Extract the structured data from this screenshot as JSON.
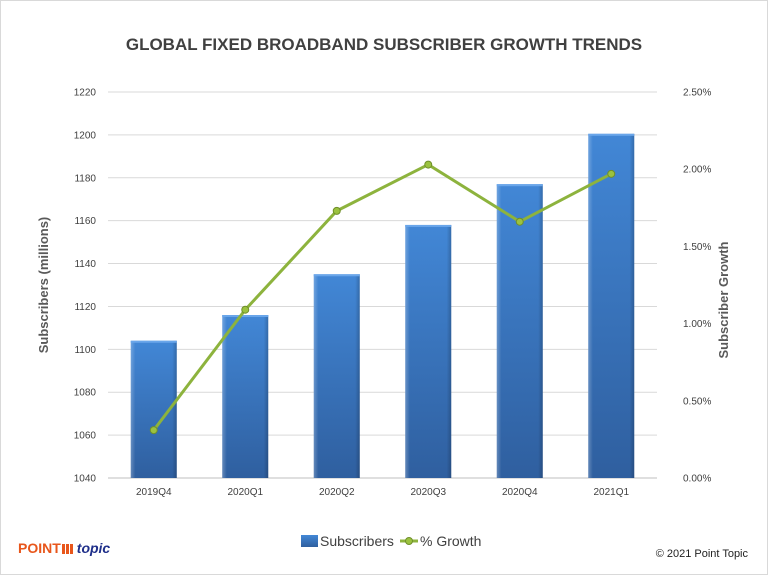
{
  "footer": {
    "logo_point": "POINT",
    "logo_topic": "topic",
    "copyright": "© 2021 Point Topic"
  },
  "chart_data": {
    "type": "bar",
    "title": "GLOBAL FIXED BROADBAND SUBSCRIBER GROWTH TRENDS",
    "categories": [
      "2019Q4",
      "2020Q1",
      "2020Q2",
      "2020Q3",
      "2020Q4",
      "2021Q1"
    ],
    "ylabel": "Subscribers (millions)",
    "y2label": "Subscriber Growth",
    "ylim": [
      1040,
      1220
    ],
    "yticks": [
      "1040",
      "1060",
      "1080",
      "1100",
      "1120",
      "1140",
      "1160",
      "1180",
      "1200",
      "1220"
    ],
    "y2lim": [
      0,
      2.5
    ],
    "y2ticks": [
      "0.00%",
      "0.50%",
      "1.00%",
      "1.50%",
      "2.00%",
      "2.50%"
    ],
    "grid": true,
    "legend_position": "bottom",
    "series": [
      {
        "name": "Subscribers",
        "type": "bar",
        "axis": "left",
        "color": "#3a75c4",
        "values": [
          1104,
          1116,
          1135,
          1158,
          1177,
          1200.5
        ]
      },
      {
        "name": "% Growth",
        "type": "line",
        "axis": "right",
        "color": "#8db33d",
        "values": [
          0.31,
          1.09,
          1.73,
          2.03,
          1.66,
          1.97
        ]
      }
    ]
  }
}
